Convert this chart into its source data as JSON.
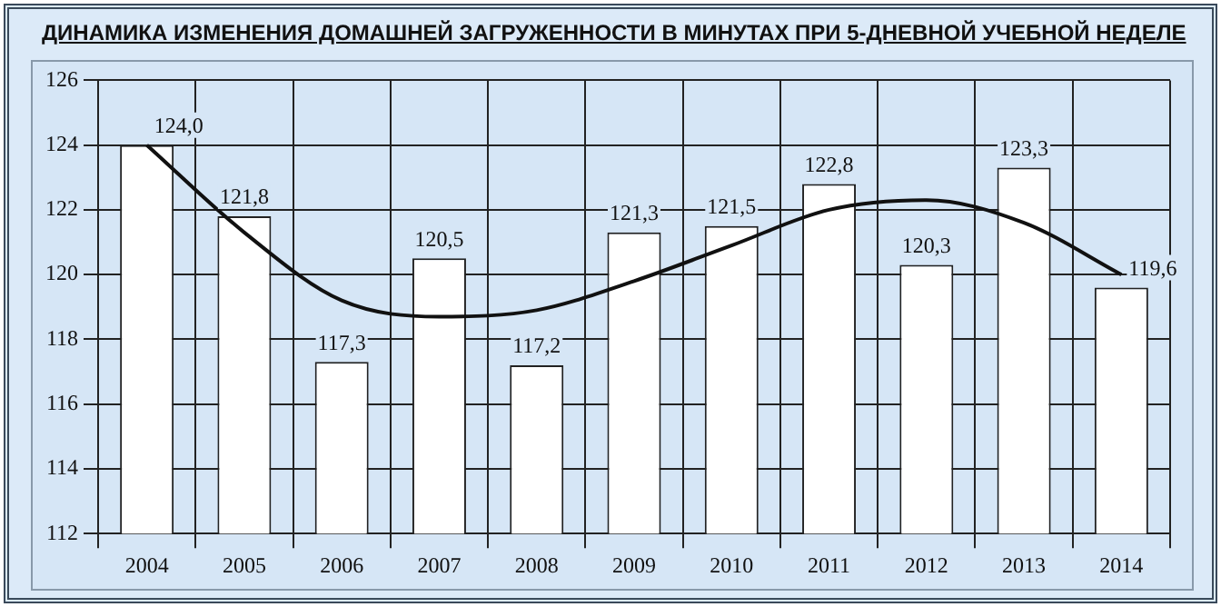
{
  "chart_data": {
    "type": "bar",
    "title": "ДИНАМИКА ИЗМЕНЕНИЯ ДОМАШНЕЙ ЗАГРУЖЕННОСТИ В МИНУТАХ  ПРИ 5-ДНЕВНОЙ УЧЕБНОЙ НЕДЕЛЕ",
    "categories": [
      "2004",
      "2005",
      "2006",
      "2007",
      "2008",
      "2009",
      "2010",
      "2011",
      "2012",
      "2013",
      "2014"
    ],
    "series": [
      {
        "color": "#ffffff",
        "values": [
          124.0,
          121.8,
          117.3,
          120.5,
          117.2,
          121.3,
          121.5,
          122.8,
          120.3,
          123.3,
          119.6
        ],
        "value_labels": [
          "124,0",
          "121,8",
          "117,3",
          "120,5",
          "117,2",
          "121,3",
          "121,5",
          "122,8",
          "120,3",
          "123,3",
          "119,6"
        ]
      },
      {
        "type": "line",
        "color": "#111111",
        "values": [
          124.0,
          121.3,
          119.2,
          118.7,
          118.9,
          119.8,
          120.9,
          122.0,
          122.3,
          121.6,
          120.0
        ]
      }
    ],
    "ylim": [
      112,
      126
    ],
    "yticks": [
      112,
      114,
      116,
      118,
      120,
      122,
      124,
      126
    ],
    "grid": true,
    "legend": false,
    "marker": "none"
  }
}
